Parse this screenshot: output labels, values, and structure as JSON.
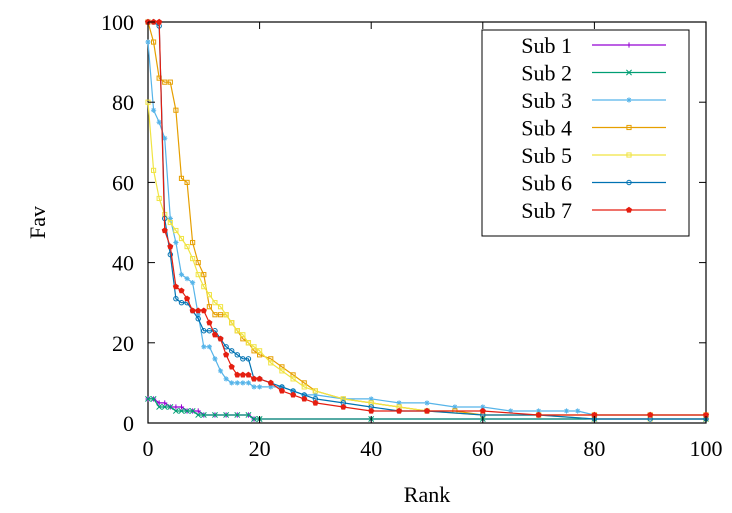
{
  "chart_data": {
    "type": "line",
    "title": "",
    "xlabel": "Rank",
    "ylabel": "Fav",
    "xlim": [
      0,
      100
    ],
    "ylim": [
      0,
      100
    ],
    "xticks": [
      0,
      20,
      40,
      60,
      80,
      100
    ],
    "yticks": [
      0,
      20,
      40,
      60,
      80,
      100
    ],
    "grid": false,
    "legend_position": "top-right",
    "series": [
      {
        "name": "Sub 1",
        "color": "#9400d3",
        "marker": "plus",
        "x": [
          0,
          1,
          2,
          3,
          4,
          5,
          6,
          7,
          8,
          9,
          10,
          12,
          14,
          16,
          18,
          19,
          20,
          40,
          60,
          80,
          100
        ],
        "y": [
          6,
          6,
          5,
          5,
          4,
          4,
          4,
          3,
          3,
          3,
          2,
          2,
          2,
          2,
          2,
          1,
          1,
          1,
          1,
          1,
          1
        ]
      },
      {
        "name": "Sub 2",
        "color": "#009e73",
        "marker": "x",
        "x": [
          0,
          1,
          2,
          3,
          4,
          5,
          6,
          7,
          8,
          9,
          10,
          12,
          14,
          16,
          18,
          19,
          20,
          40,
          60,
          80,
          100
        ],
        "y": [
          6,
          6,
          4,
          4,
          4,
          3,
          3,
          3,
          3,
          2,
          2,
          2,
          2,
          2,
          2,
          1,
          1,
          1,
          1,
          1,
          1
        ]
      },
      {
        "name": "Sub 3",
        "color": "#56b4e9",
        "marker": "star",
        "x": [
          0,
          1,
          2,
          3,
          4,
          5,
          6,
          7,
          8,
          9,
          10,
          11,
          12,
          13,
          14,
          15,
          16,
          17,
          18,
          19,
          20,
          22,
          24,
          26,
          28,
          30,
          35,
          40,
          45,
          50,
          55,
          60,
          65,
          70,
          75,
          77,
          80,
          90,
          100
        ],
        "y": [
          95,
          78,
          75,
          71,
          51,
          45,
          37,
          36,
          35,
          27,
          19,
          19,
          16,
          13,
          11,
          10,
          10,
          10,
          10,
          9,
          9,
          9,
          9,
          8,
          7,
          7,
          6,
          6,
          5,
          5,
          4,
          4,
          3,
          3,
          3,
          3,
          2,
          2,
          2
        ]
      },
      {
        "name": "Sub 4",
        "color": "#e69f00",
        "marker": "box",
        "x": [
          0,
          1,
          2,
          3,
          4,
          5,
          6,
          7,
          8,
          9,
          10,
          11,
          12,
          13,
          14,
          15,
          16,
          17,
          18,
          19,
          20,
          22,
          24,
          26,
          28,
          30,
          35,
          40,
          45,
          50,
          55,
          60,
          70,
          80,
          90,
          100
        ],
        "y": [
          100,
          95,
          86,
          85,
          85,
          78,
          61,
          60,
          45,
          40,
          37,
          29,
          27,
          27,
          27,
          25,
          23,
          21,
          20,
          18,
          17,
          16,
          14,
          12,
          10,
          8,
          6,
          5,
          4,
          3,
          3,
          2,
          2,
          2,
          2,
          2
        ]
      },
      {
        "name": "Sub 5",
        "color": "#f0e442",
        "marker": "box",
        "x": [
          0,
          1,
          2,
          3,
          4,
          5,
          6,
          7,
          8,
          9,
          10,
          11,
          12,
          13,
          14,
          15,
          16,
          17,
          18,
          19,
          20,
          22,
          24,
          26,
          28,
          30,
          35,
          40,
          45,
          50,
          60,
          70,
          80,
          90,
          100
        ],
        "y": [
          80,
          63,
          56,
          52,
          50,
          48,
          46,
          44,
          41,
          37,
          34,
          32,
          30,
          29,
          27,
          25,
          23,
          22,
          20,
          19,
          18,
          15,
          13,
          11,
          9,
          8,
          6,
          5,
          4,
          3,
          2,
          2,
          1,
          1,
          1
        ]
      },
      {
        "name": "Sub 6",
        "color": "#0072b2",
        "marker": "circle",
        "x": [
          0,
          1,
          2,
          3,
          4,
          5,
          6,
          7,
          8,
          9,
          10,
          11,
          12,
          13,
          14,
          15,
          16,
          17,
          18,
          19,
          20,
          22,
          24,
          26,
          28,
          30,
          35,
          40,
          45,
          50,
          60,
          70,
          80,
          90,
          100
        ],
        "y": [
          100,
          100,
          99,
          51,
          42,
          31,
          30,
          30,
          28,
          26,
          23,
          23,
          23,
          21,
          19,
          18,
          17,
          16,
          16,
          11,
          11,
          10,
          9,
          8,
          7,
          6,
          5,
          4,
          3,
          3,
          2,
          2,
          1,
          1,
          1
        ]
      },
      {
        "name": "Sub 7",
        "color": "#e51e10",
        "marker": "pentagon",
        "x": [
          0,
          1,
          2,
          3,
          4,
          5,
          6,
          7,
          8,
          9,
          10,
          11,
          12,
          13,
          14,
          15,
          16,
          17,
          18,
          19,
          20,
          22,
          24,
          26,
          28,
          30,
          35,
          40,
          45,
          50,
          60,
          70,
          80,
          90,
          100
        ],
        "y": [
          100,
          100,
          100,
          48,
          44,
          34,
          33,
          31,
          28,
          28,
          28,
          25,
          22,
          21,
          17,
          14,
          12,
          12,
          12,
          11,
          11,
          10,
          8,
          7,
          6,
          5,
          4,
          3,
          3,
          3,
          3,
          2,
          2,
          2,
          2
        ]
      }
    ]
  }
}
